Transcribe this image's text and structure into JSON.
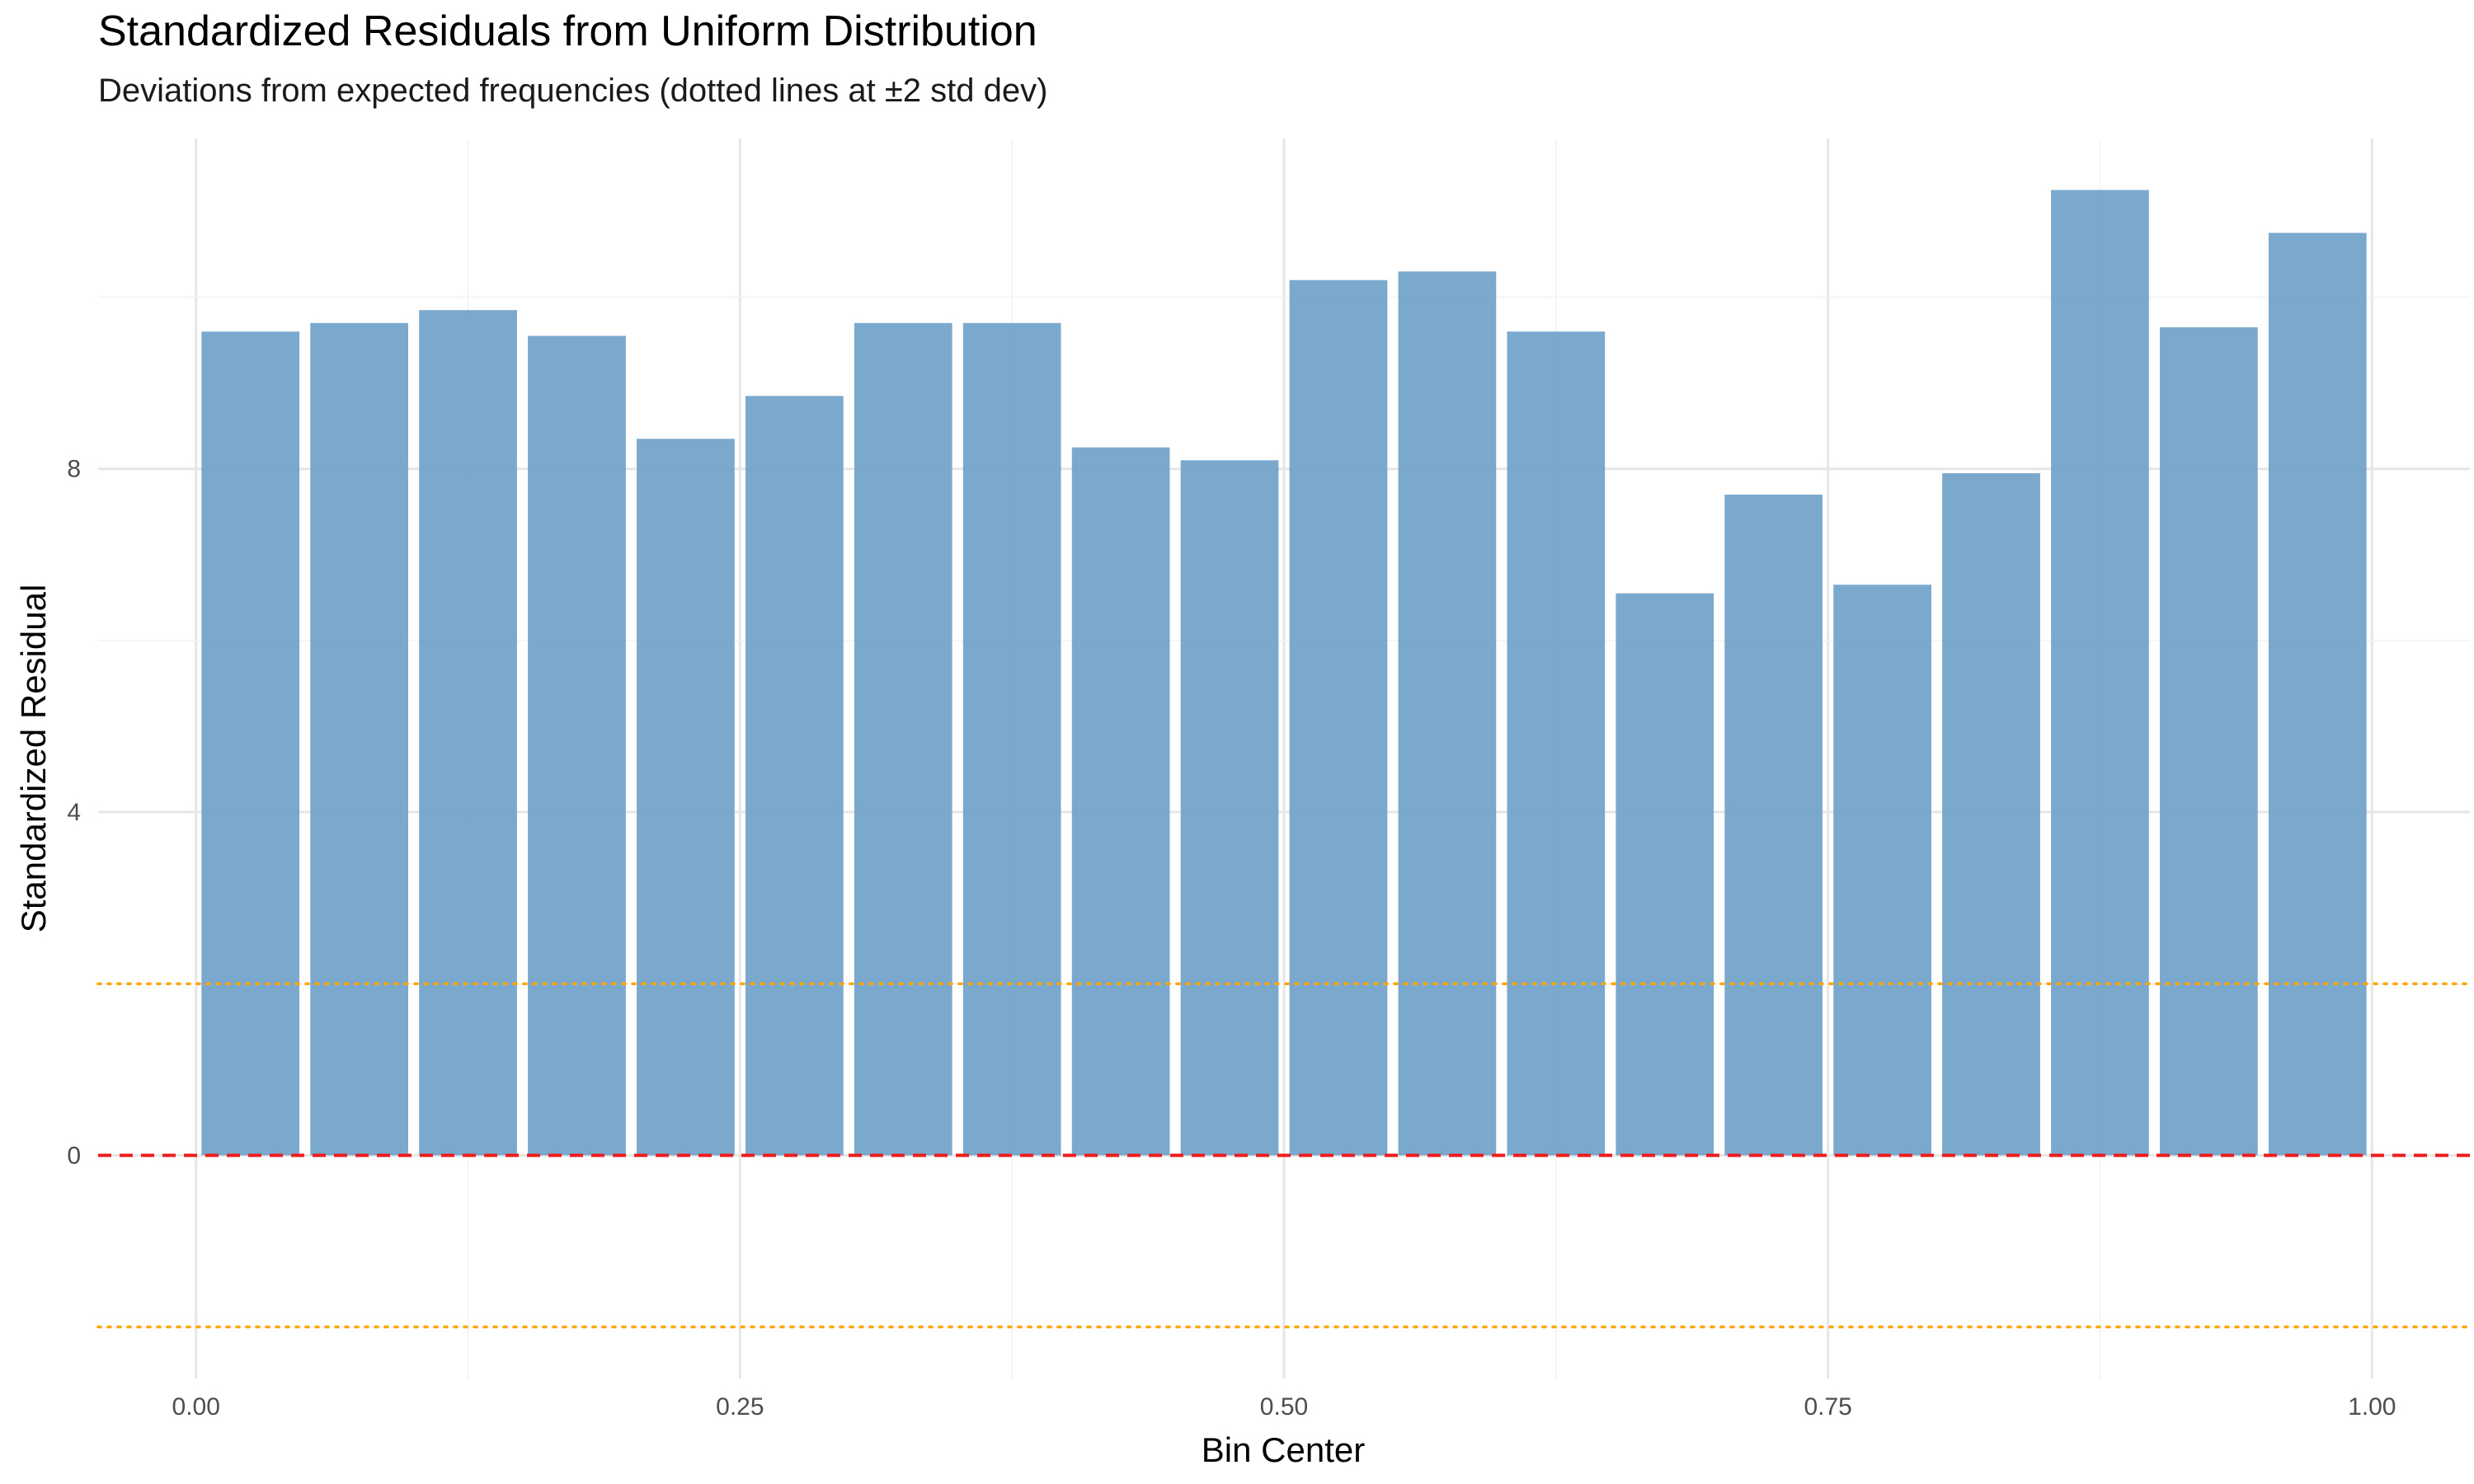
{
  "chart_data": {
    "type": "bar",
    "title": "Standardized Residuals from Uniform Distribution",
    "subtitle": "Deviations from expected frequencies (dotted lines at ±2 std dev)",
    "xlabel": "Bin Center",
    "ylabel": "Standardized Residual",
    "xlim": [
      -0.045,
      1.045
    ],
    "ylim": [
      -2.6,
      11.85
    ],
    "x_ticks": [
      0.0,
      0.25,
      0.5,
      0.75,
      1.0
    ],
    "x_tick_labels": [
      "0.00",
      "0.25",
      "0.50",
      "0.75",
      "1.00"
    ],
    "y_ticks": [
      0,
      4,
      8
    ],
    "y_tick_labels": [
      "0",
      "4",
      "8"
    ],
    "bar_width": 0.045,
    "x": [
      0.025,
      0.075,
      0.125,
      0.175,
      0.225,
      0.275,
      0.325,
      0.375,
      0.425,
      0.475,
      0.525,
      0.575,
      0.625,
      0.675,
      0.725,
      0.775,
      0.825,
      0.875,
      0.925,
      0.975
    ],
    "values": [
      9.6,
      9.7,
      9.85,
      9.55,
      8.35,
      8.85,
      9.7,
      9.7,
      8.25,
      8.1,
      10.2,
      10.3,
      9.6,
      6.55,
      7.7,
      6.65,
      7.95,
      11.25,
      9.65,
      10.75
    ],
    "reference_lines": [
      {
        "y": 0,
        "style": "dashed",
        "color": "#ee1c1c"
      },
      {
        "y": 2,
        "style": "dotted",
        "color": "#ffa500"
      },
      {
        "y": -2,
        "style": "dotted",
        "color": "#ffa500"
      }
    ],
    "bar_color": "#6d9ec8",
    "grid": true,
    "legend": "none"
  }
}
